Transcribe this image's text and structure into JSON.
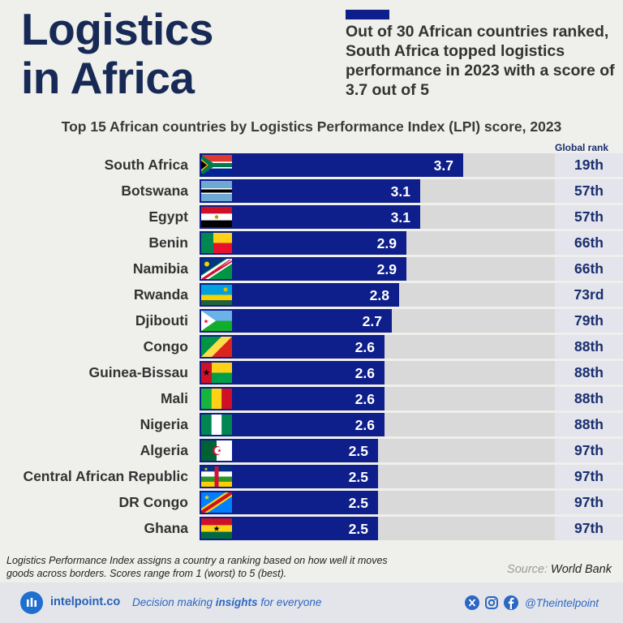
{
  "header": {
    "title_line1": "Logistics",
    "title_line2": "in Africa",
    "headline": "Out of 30 African countries ranked, South Africa topped logistics performance in 2023 with a score of 3.7 out of 5"
  },
  "chart_data": {
    "type": "bar",
    "orientation": "horizontal",
    "title": "Top 15 African countries by Logistics Performance Index (LPI) score, 2023",
    "rank_header": "Global rank",
    "xlim": [
      0,
      5
    ],
    "categories": [
      "South Africa",
      "Botswana",
      "Egypt",
      "Benin",
      "Namibia",
      "Rwanda",
      "Djibouti",
      "Congo",
      "Guinea-Bissau",
      "Mali",
      "Nigeria",
      "Algeria",
      "Central African Republic",
      "DR Congo",
      "Ghana"
    ],
    "values": [
      3.7,
      3.1,
      3.1,
      2.9,
      2.9,
      2.8,
      2.7,
      2.6,
      2.6,
      2.6,
      2.6,
      2.5,
      2.5,
      2.5,
      2.5
    ],
    "value_labels": [
      "3.7",
      "3.1",
      "3.1",
      "2.9",
      "2.9",
      "2.8",
      "2.7",
      "2.6",
      "2.6",
      "2.6",
      "2.6",
      "2.5",
      "2.5",
      "2.5",
      "2.5"
    ],
    "global_ranks": [
      "19th",
      "57th",
      "57th",
      "66th",
      "66th",
      "73rd",
      "79th",
      "88th",
      "88th",
      "88th",
      "88th",
      "97th",
      "97th",
      "97th",
      "97th"
    ],
    "flags": [
      "south-africa",
      "botswana",
      "egypt",
      "benin",
      "namibia",
      "rwanda",
      "djibouti",
      "congo",
      "guinea-bissau",
      "mali",
      "nigeria",
      "algeria",
      "central-african-republic",
      "dr-congo",
      "ghana"
    ],
    "colors": {
      "bar": "#0e1e8a",
      "track": "#d9d9d9",
      "rank_bg": "#e3e4ec",
      "rank_text": "#1a2e6e"
    },
    "grid": false,
    "legend": "none"
  },
  "footnote": "Logistics Performance Index assigns a country a ranking based on how well it moves goods across borders. Scores range from 1 (worst) to 5 (best).",
  "source": {
    "label": "Source:",
    "name": "World Bank"
  },
  "footer": {
    "brand": "intelpoint.co",
    "tagline_pre": "Decision making ",
    "tagline_em": "insights",
    "tagline_post": " for everyone",
    "handle": "@Theintelpoint",
    "social_icons": [
      "x-icon",
      "instagram-icon",
      "facebook-icon"
    ]
  }
}
